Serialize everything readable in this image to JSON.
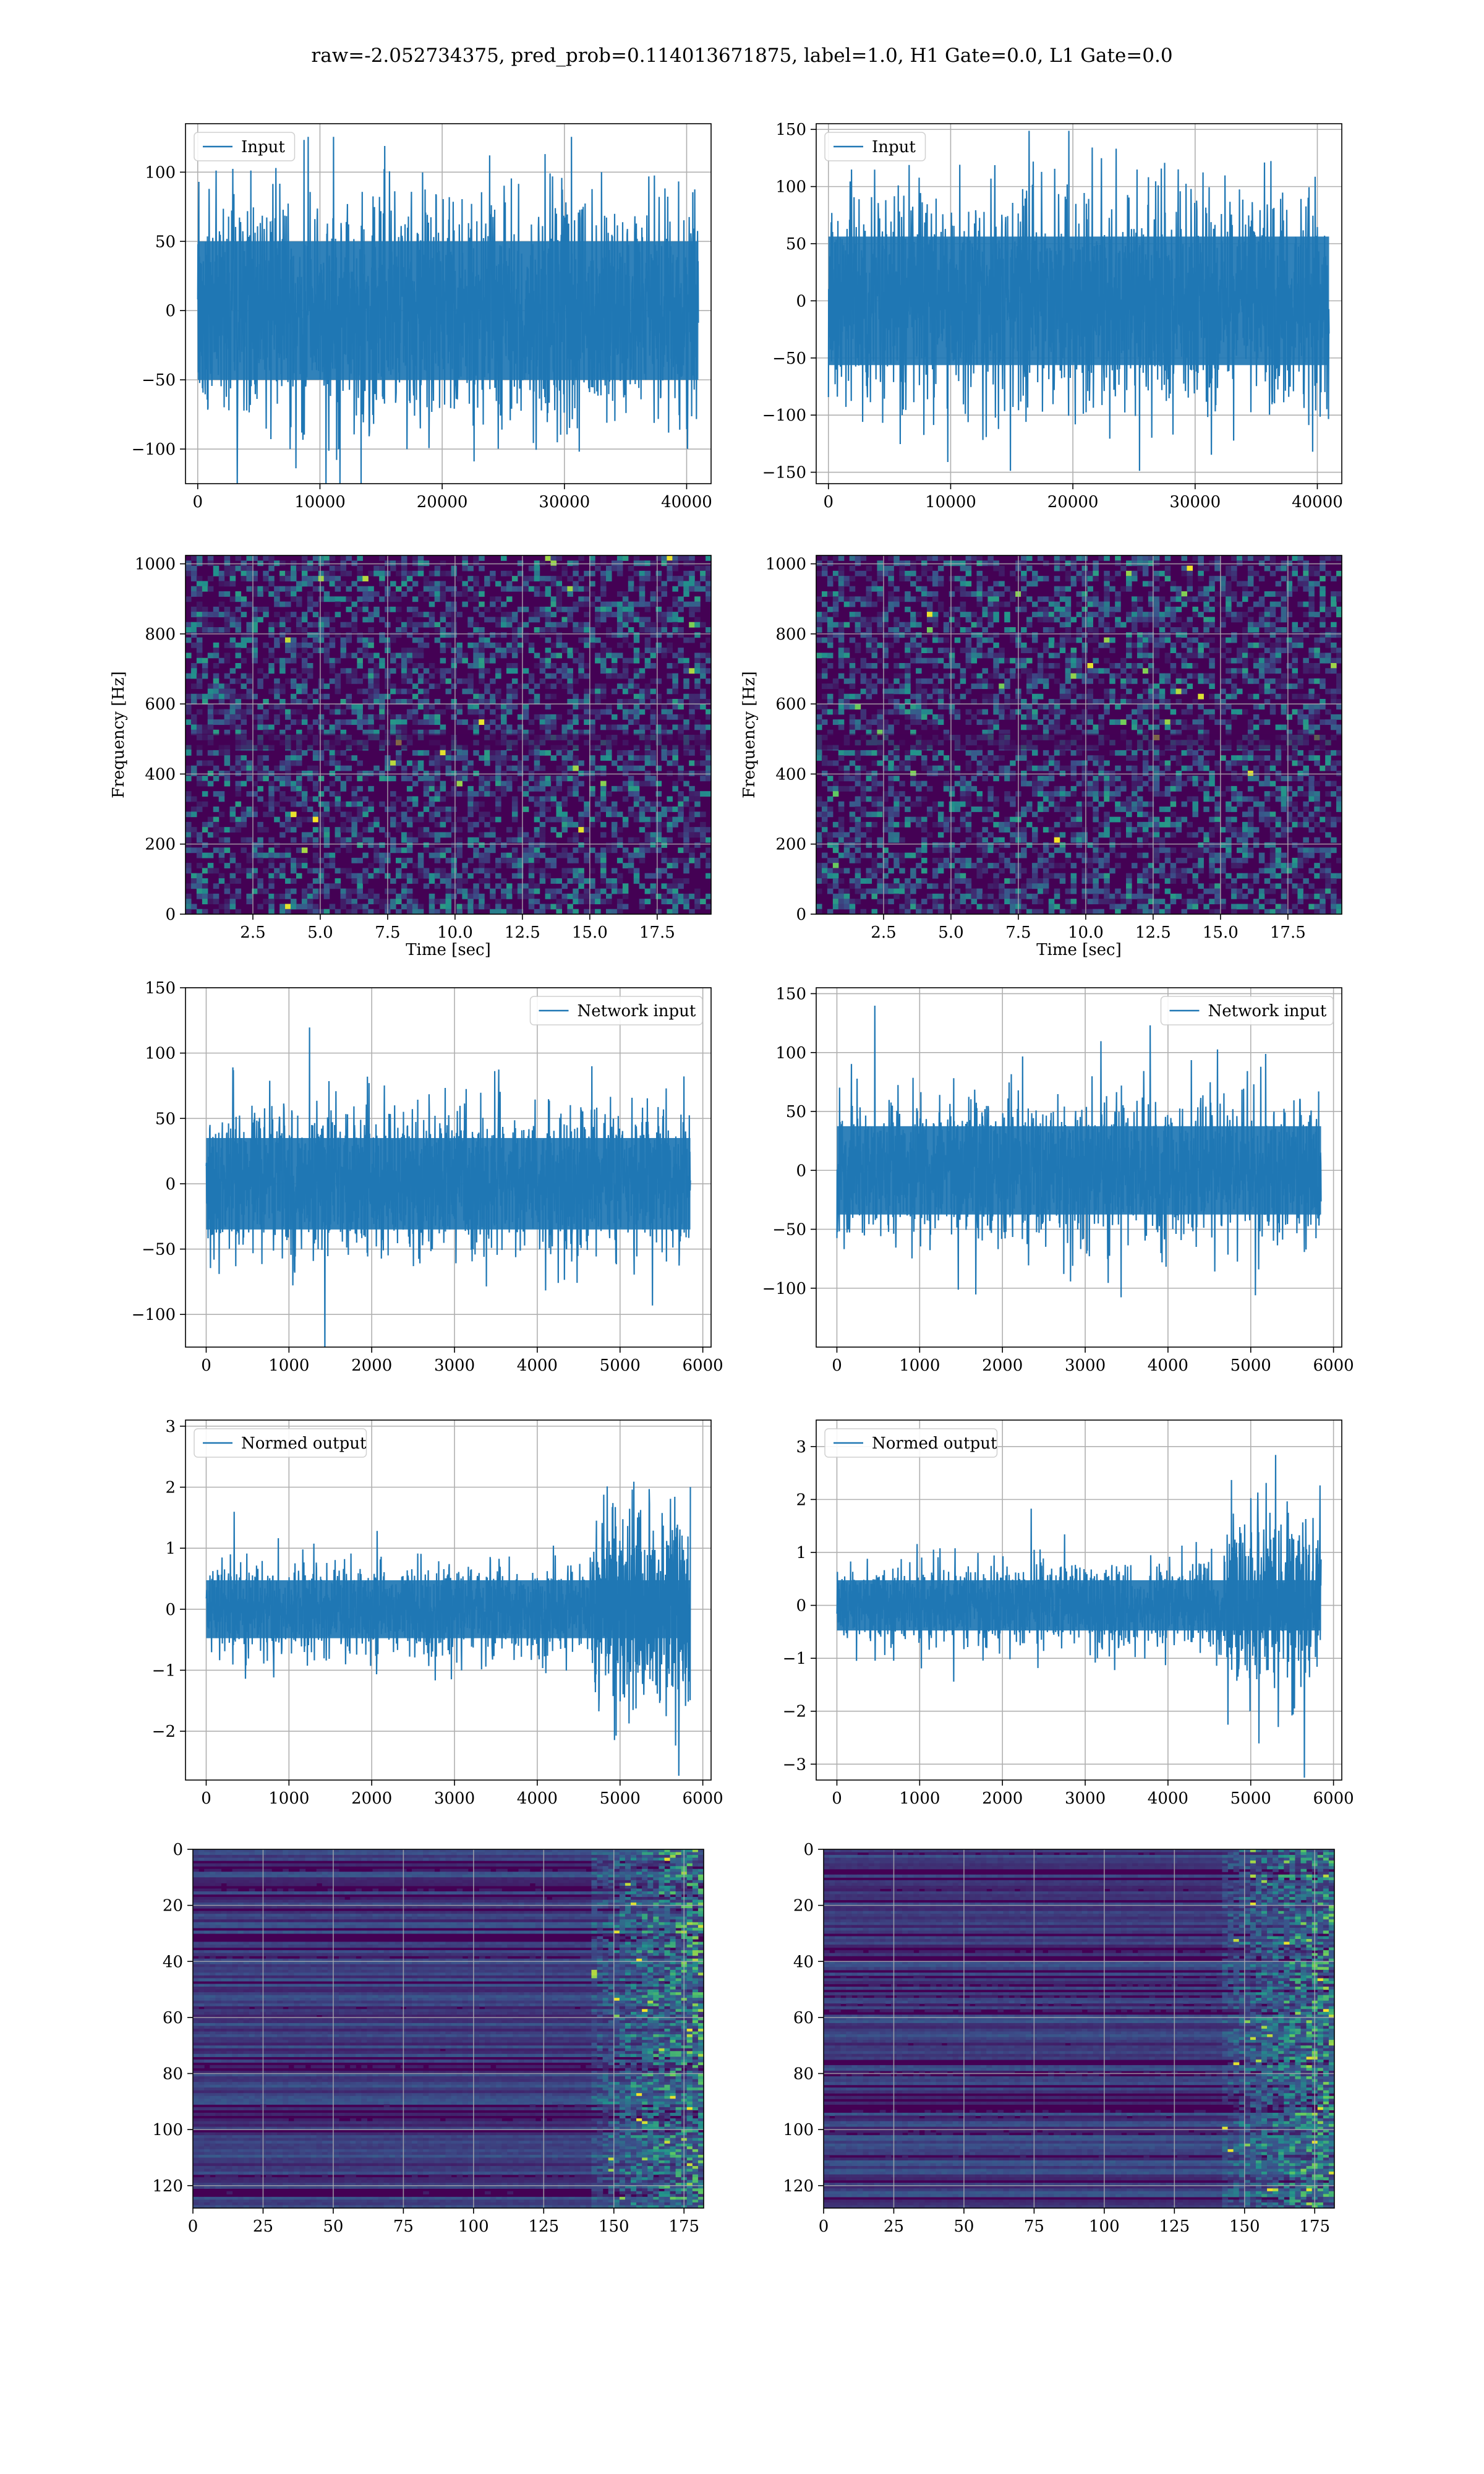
{
  "figure": {
    "suptitle": "raw=-2.052734375, pred_prob=0.114013671875, label=1.0, H1 Gate=0.0, L1 Gate=0.0"
  },
  "colors": {
    "line": "#1f77b4",
    "grid": "#b0b0b0",
    "viridis_low": "#440154",
    "viridis_mid": "#21918c",
    "viridis_high": "#fde725"
  },
  "chart_data": [
    {
      "id": "r1c1",
      "type": "line",
      "legend": "Input",
      "n_points": 40960,
      "xlim": [
        -1000,
        42000
      ],
      "ylim": [
        -125,
        135
      ],
      "noise_amp": 40,
      "xticks": [
        0,
        10000,
        20000,
        30000,
        40000
      ],
      "xtick_labels": [
        "0",
        "10000",
        "20000",
        "30000",
        "40000"
      ],
      "yticks": [
        -100,
        -50,
        0,
        50,
        100
      ],
      "ytick_labels": [
        "−100",
        "−50",
        "0",
        "50",
        "100"
      ],
      "legend_loc": "upper left",
      "grid": true
    },
    {
      "id": "r1c2",
      "type": "line",
      "legend": "Input",
      "n_points": 40960,
      "xlim": [
        -1000,
        42000
      ],
      "ylim": [
        -160,
        155
      ],
      "noise_amp": 45,
      "xticks": [
        0,
        10000,
        20000,
        30000,
        40000
      ],
      "xtick_labels": [
        "0",
        "10000",
        "20000",
        "30000",
        "40000"
      ],
      "yticks": [
        -150,
        -100,
        -50,
        0,
        50,
        100,
        150
      ],
      "ytick_labels": [
        "−150",
        "−100",
        "−50",
        "0",
        "50",
        "100",
        "150"
      ],
      "legend_loc": "upper left",
      "grid": true
    },
    {
      "id": "r2c1",
      "type": "heatmap",
      "xlabel": "Time [sec]",
      "ylabel": "Frequency [Hz]",
      "xlim": [
        0,
        19.5
      ],
      "ylim": [
        0,
        1024
      ],
      "xticks": [
        2.5,
        5.0,
        7.5,
        10.0,
        12.5,
        15.0,
        17.5
      ],
      "xtick_labels": [
        "2.5",
        "5.0",
        "7.5",
        "10.0",
        "12.5",
        "15.0",
        "17.5"
      ],
      "yticks": [
        0,
        200,
        400,
        600,
        800,
        1000
      ],
      "ytick_labels": [
        "0",
        "200",
        "400",
        "600",
        "800",
        "1000"
      ],
      "grid": true,
      "colormap": "viridis"
    },
    {
      "id": "r2c2",
      "type": "heatmap",
      "xlabel": "Time [sec]",
      "ylabel": "Frequency [Hz]",
      "xlim": [
        0,
        19.5
      ],
      "ylim": [
        0,
        1024
      ],
      "xticks": [
        2.5,
        5.0,
        7.5,
        10.0,
        12.5,
        15.0,
        17.5
      ],
      "xtick_labels": [
        "2.5",
        "5.0",
        "7.5",
        "10.0",
        "12.5",
        "15.0",
        "17.5"
      ],
      "yticks": [
        0,
        200,
        400,
        600,
        800,
        1000
      ],
      "ytick_labels": [
        "0",
        "200",
        "400",
        "600",
        "800",
        "1000"
      ],
      "grid": true,
      "colormap": "viridis"
    },
    {
      "id": "r3c1",
      "type": "line",
      "legend": "Network input",
      "n_points": 5850,
      "xlim": [
        -250,
        6100
      ],
      "ylim": [
        -125,
        150
      ],
      "noise_amp": 28,
      "xticks": [
        0,
        1000,
        2000,
        3000,
        4000,
        5000,
        6000
      ],
      "xtick_labels": [
        "0",
        "1000",
        "2000",
        "3000",
        "4000",
        "5000",
        "6000"
      ],
      "yticks": [
        -100,
        -50,
        0,
        50,
        100,
        150
      ],
      "ytick_labels": [
        "−100",
        "−50",
        "0",
        "50",
        "100",
        "150"
      ],
      "legend_loc": "upper right",
      "grid": true
    },
    {
      "id": "r3c2",
      "type": "line",
      "legend": "Network input",
      "n_points": 5850,
      "xlim": [
        -250,
        6100
      ],
      "ylim": [
        -150,
        155
      ],
      "noise_amp": 30,
      "xticks": [
        0,
        1000,
        2000,
        3000,
        4000,
        5000,
        6000
      ],
      "xtick_labels": [
        "0",
        "1000",
        "2000",
        "3000",
        "4000",
        "5000",
        "6000"
      ],
      "yticks": [
        -100,
        -50,
        0,
        50,
        100,
        150
      ],
      "ytick_labels": [
        "−100",
        "−50",
        "0",
        "50",
        "100",
        "150"
      ],
      "legend_loc": "upper right",
      "grid": true
    },
    {
      "id": "r4c1",
      "type": "line",
      "legend": "Normed output",
      "n_points": 5850,
      "xlim": [
        -250,
        6100
      ],
      "ylim": [
        -2.8,
        3.1
      ],
      "noise_amp": 0.38,
      "xticks": [
        0,
        1000,
        2000,
        3000,
        4000,
        5000,
        6000
      ],
      "xtick_labels": [
        "0",
        "1000",
        "2000",
        "3000",
        "4000",
        "5000",
        "6000"
      ],
      "yticks": [
        -2,
        -1,
        0,
        1,
        2,
        3
      ],
      "ytick_labels": [
        "−2",
        "−1",
        "0",
        "1",
        "2",
        "3"
      ],
      "legend_loc": "upper left",
      "grid": true
    },
    {
      "id": "r4c2",
      "type": "line",
      "legend": "Normed output",
      "n_points": 5850,
      "xlim": [
        -250,
        6100
      ],
      "ylim": [
        -3.3,
        3.5
      ],
      "noise_amp": 0.38,
      "xticks": [
        0,
        1000,
        2000,
        3000,
        4000,
        5000,
        6000
      ],
      "xtick_labels": [
        "0",
        "1000",
        "2000",
        "3000",
        "4000",
        "5000",
        "6000"
      ],
      "yticks": [
        -3,
        -2,
        -1,
        0,
        1,
        2,
        3
      ],
      "ytick_labels": [
        "−3",
        "−2",
        "−1",
        "0",
        "1",
        "2",
        "3"
      ],
      "legend_loc": "upper left",
      "grid": true
    },
    {
      "id": "r5c1",
      "type": "heatmap",
      "xlim": [
        0,
        182
      ],
      "ylim": [
        0,
        128
      ],
      "y_inverted": true,
      "xticks": [
        0,
        25,
        50,
        75,
        100,
        125,
        150,
        175
      ],
      "xtick_labels": [
        "0",
        "25",
        "50",
        "75",
        "100",
        "125",
        "150",
        "175"
      ],
      "yticks": [
        0,
        20,
        40,
        60,
        80,
        100,
        120
      ],
      "ytick_labels": [
        "0",
        "20",
        "40",
        "60",
        "80",
        "100",
        "120"
      ],
      "grid": true,
      "colormap": "viridis"
    },
    {
      "id": "r5c2",
      "type": "heatmap",
      "xlim": [
        0,
        182
      ],
      "ylim": [
        0,
        128
      ],
      "y_inverted": true,
      "xticks": [
        0,
        25,
        50,
        75,
        100,
        125,
        150,
        175
      ],
      "xtick_labels": [
        "0",
        "25",
        "50",
        "75",
        "100",
        "125",
        "150",
        "175"
      ],
      "yticks": [
        0,
        20,
        40,
        60,
        80,
        100,
        120
      ],
      "ytick_labels": [
        "0",
        "20",
        "40",
        "60",
        "80",
        "100",
        "120"
      ],
      "grid": true,
      "colormap": "viridis"
    }
  ]
}
